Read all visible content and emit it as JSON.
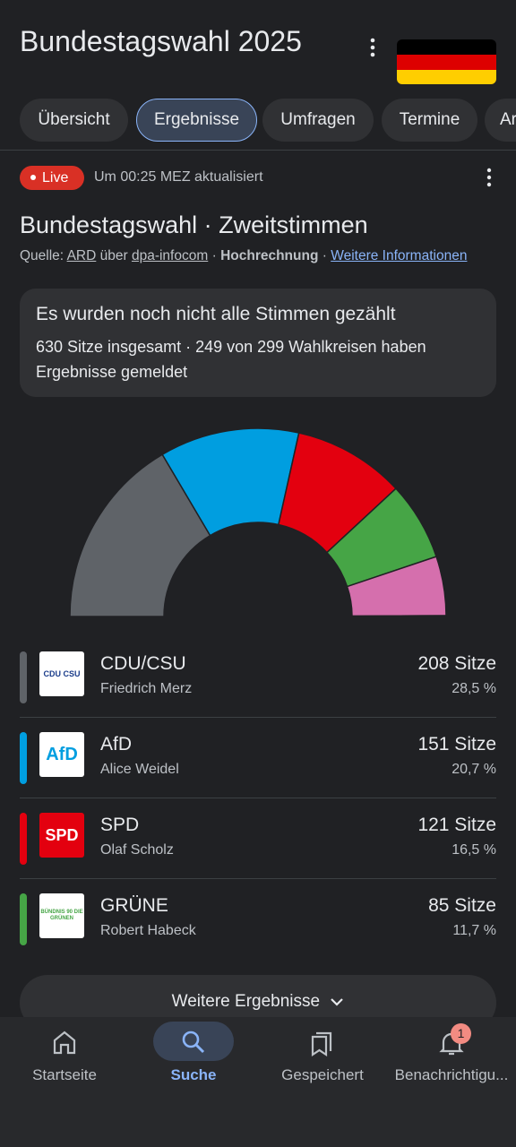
{
  "header": {
    "title": "Bundestagswahl 2025"
  },
  "tabs": [
    "Übersicht",
    "Ergebnisse",
    "Umfragen",
    "Termine",
    "Ar"
  ],
  "selected_tab": 1,
  "status": {
    "badge": "Live",
    "updated": "Um 00:25 MEZ aktualisiert"
  },
  "heading": "Bundestagswahl · Zweitstimmen",
  "source": {
    "prefix": "Quelle:",
    "provider": "ARD",
    "via": "über",
    "agency": "dpa-infocom",
    "separator": "·",
    "kind": "Hochrechnung",
    "link": "Weitere Informationen"
  },
  "notice": {
    "title": "Es wurden noch nicht alle Stimmen gezählt",
    "text": "630 Sitze insgesamt · 249 von 299 Wahlkreisen haben Ergebnisse gemeldet"
  },
  "parties": [
    {
      "name": "CDU/CSU",
      "leader": "Friedrich Merz",
      "seats": 208,
      "seats_label": "208 Sitze",
      "share_label": "28,5 %",
      "color": "#5f6368",
      "logo": "CDU CSU"
    },
    {
      "name": "AfD",
      "leader": "Alice Weidel",
      "seats": 151,
      "seats_label": "151 Sitze",
      "share_label": "20,7 %",
      "color": "#009ee0",
      "logo": "AfD"
    },
    {
      "name": "SPD",
      "leader": "Olaf Scholz",
      "seats": 121,
      "seats_label": "121 Sitze",
      "share_label": "16,5 %",
      "color": "#e3000f",
      "logo": "SPD"
    },
    {
      "name": "GRÜNE",
      "leader": "Robert Habeck",
      "seats": 85,
      "seats_label": "85 Sitze",
      "share_label": "11,7 %",
      "color": "#46a546",
      "logo": "BÜNDNIS 90 DIE GRÜNEN"
    }
  ],
  "other_segments": [
    {
      "value": 64,
      "color": "#d56fad"
    },
    {
      "value": 1,
      "color": "#1c3e8a"
    }
  ],
  "more_button": "Weitere Ergebnisse",
  "nav": {
    "items": [
      "Startseite",
      "Suche",
      "Gespeichert",
      "Benachrichtigu..."
    ],
    "active": 1,
    "badge": "1"
  }
}
